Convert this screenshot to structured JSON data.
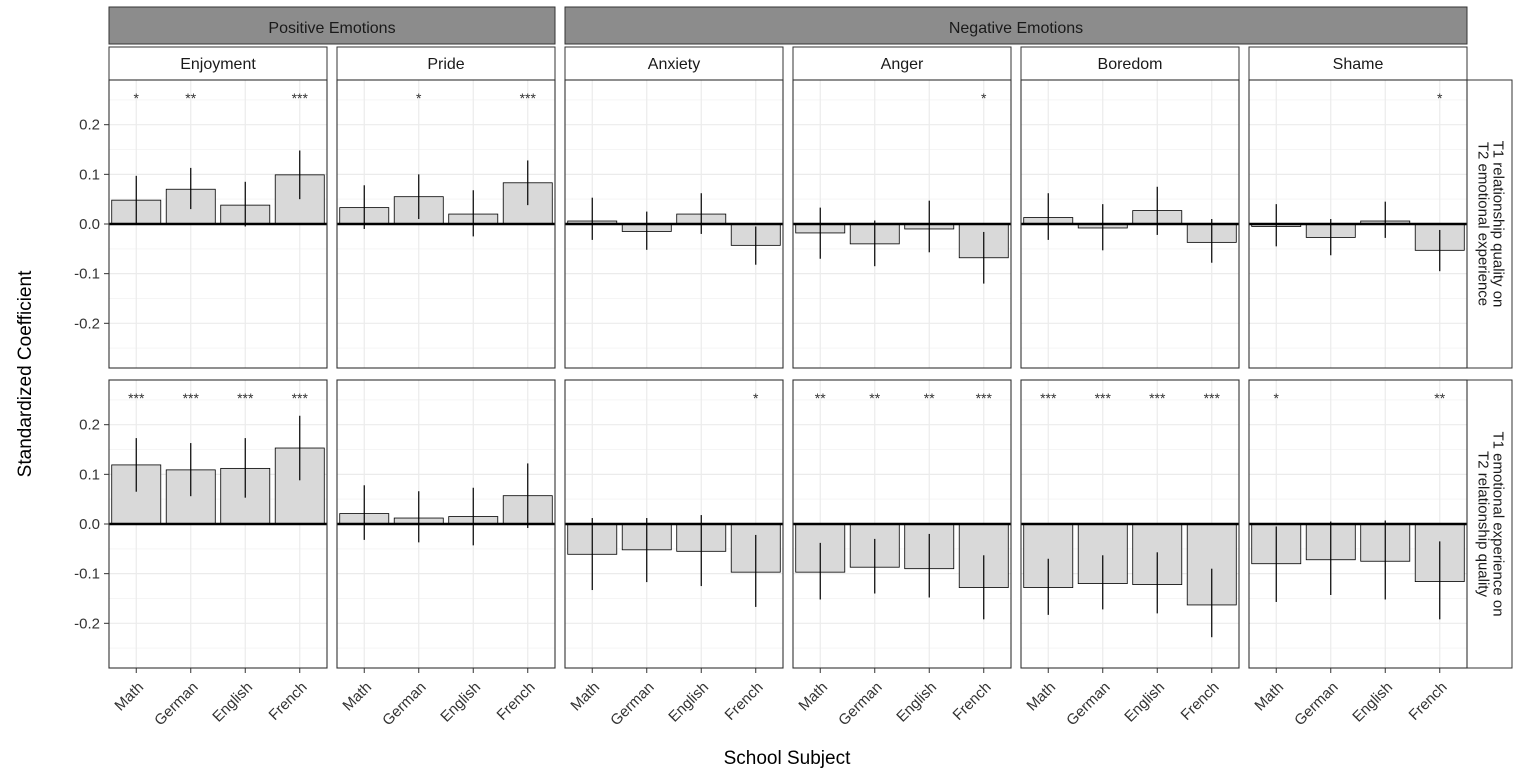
{
  "chart_data": {
    "type": "bar",
    "xlabel": "School Subject",
    "ylabel": "Standardized Coefficient",
    "categories": [
      "Math",
      "German",
      "English",
      "French"
    ],
    "ylim": [
      -0.29,
      0.29
    ],
    "yticks": [
      -0.2,
      -0.1,
      0.0,
      0.1,
      0.2
    ],
    "ytick_labels": [
      "-0.2",
      "-0.1",
      "0.0",
      "0.1",
      "0.2"
    ],
    "grid": true,
    "groups": [
      {
        "label": "Positive Emotions",
        "facets": [
          "Enjoyment",
          "Pride"
        ]
      },
      {
        "label": "Negative Emotions",
        "facets": [
          "Anxiety",
          "Anger",
          "Boredom",
          "Shame"
        ]
      }
    ],
    "facets": [
      "Enjoyment",
      "Pride",
      "Anxiety",
      "Anger",
      "Boredom",
      "Shame"
    ],
    "rows": [
      {
        "label": "T1 relationship quality on T2 emotional experience",
        "label_lines": [
          "T1 relationship quality on",
          "T2 emotional experience"
        ],
        "panels": [
          {
            "facet": "Enjoyment",
            "values": [
              0.048,
              0.07,
              0.038,
              0.099
            ],
            "ci_low": [
              0.0,
              0.03,
              -0.005,
              0.05
            ],
            "ci_high": [
              0.097,
              0.113,
              0.085,
              0.148
            ],
            "sig": [
              "*",
              "**",
              "",
              "***"
            ]
          },
          {
            "facet": "Pride",
            "values": [
              0.033,
              0.055,
              0.02,
              0.083
            ],
            "ci_low": [
              -0.01,
              0.01,
              -0.025,
              0.038
            ],
            "ci_high": [
              0.078,
              0.1,
              0.068,
              0.128
            ],
            "sig": [
              "",
              "*",
              "",
              "***"
            ]
          },
          {
            "facet": "Anxiety",
            "values": [
              0.006,
              -0.015,
              0.02,
              -0.043
            ],
            "ci_low": [
              -0.032,
              -0.052,
              -0.02,
              -0.082
            ],
            "ci_high": [
              0.053,
              0.025,
              0.062,
              -0.005
            ],
            "sig": [
              "",
              "",
              "",
              ""
            ]
          },
          {
            "facet": "Anger",
            "values": [
              -0.018,
              -0.04,
              -0.01,
              -0.068
            ],
            "ci_low": [
              -0.07,
              -0.085,
              -0.057,
              -0.12
            ],
            "ci_high": [
              0.033,
              0.007,
              0.047,
              -0.016
            ],
            "sig": [
              "",
              "",
              "",
              "*"
            ]
          },
          {
            "facet": "Boredom",
            "values": [
              0.013,
              -0.008,
              0.027,
              -0.037
            ],
            "ci_low": [
              -0.032,
              -0.053,
              -0.022,
              -0.078
            ],
            "ci_high": [
              0.062,
              0.04,
              0.075,
              0.01
            ],
            "sig": [
              "",
              "",
              "",
              ""
            ]
          },
          {
            "facet": "Shame",
            "values": [
              -0.005,
              -0.027,
              0.006,
              -0.053
            ],
            "ci_low": [
              -0.045,
              -0.063,
              -0.028,
              -0.095
            ],
            "ci_high": [
              0.04,
              0.01,
              0.045,
              -0.012
            ],
            "sig": [
              "",
              "",
              "",
              "*"
            ]
          }
        ]
      },
      {
        "label": "T1 emotional experience on T2 relationship quality",
        "label_lines": [
          "T1 emotional experience on",
          "T2 relationship quality"
        ],
        "panels": [
          {
            "facet": "Enjoyment",
            "values": [
              0.119,
              0.109,
              0.112,
              0.153
            ],
            "ci_low": [
              0.065,
              0.056,
              0.053,
              0.088
            ],
            "ci_high": [
              0.173,
              0.163,
              0.173,
              0.218
            ],
            "sig": [
              "***",
              "***",
              "***",
              "***"
            ]
          },
          {
            "facet": "Pride",
            "values": [
              0.021,
              0.012,
              0.015,
              0.057
            ],
            "ci_low": [
              -0.032,
              -0.037,
              -0.043,
              -0.008
            ],
            "ci_high": [
              0.078,
              0.066,
              0.073,
              0.122
            ],
            "sig": [
              "",
              "",
              "",
              ""
            ]
          },
          {
            "facet": "Anxiety",
            "values": [
              -0.061,
              -0.052,
              -0.055,
              -0.097
            ],
            "ci_low": [
              -0.133,
              -0.117,
              -0.125,
              -0.167
            ],
            "ci_high": [
              0.012,
              0.012,
              0.018,
              -0.022
            ],
            "sig": [
              "",
              "",
              "",
              "*"
            ]
          },
          {
            "facet": "Anger",
            "values": [
              -0.097,
              -0.087,
              -0.09,
              -0.128
            ],
            "ci_low": [
              -0.152,
              -0.14,
              -0.148,
              -0.192
            ],
            "ci_high": [
              -0.038,
              -0.03,
              -0.02,
              -0.063
            ],
            "sig": [
              "**",
              "**",
              "**",
              "***"
            ]
          },
          {
            "facet": "Boredom",
            "values": [
              -0.128,
              -0.12,
              -0.122,
              -0.163
            ],
            "ci_low": [
              -0.183,
              -0.172,
              -0.18,
              -0.228
            ],
            "ci_high": [
              -0.07,
              -0.063,
              -0.057,
              -0.09
            ],
            "sig": [
              "***",
              "***",
              "***",
              "***"
            ]
          },
          {
            "facet": "Shame",
            "values": [
              -0.08,
              -0.072,
              -0.075,
              -0.116
            ],
            "ci_low": [
              -0.157,
              -0.143,
              -0.152,
              -0.192
            ],
            "ci_high": [
              -0.005,
              0.005,
              0.007,
              -0.035
            ],
            "sig": [
              "*",
              "",
              "",
              "**"
            ]
          }
        ]
      }
    ]
  },
  "colors": {
    "bar_fill": "#d9d9d9",
    "bar_stroke": "#000000",
    "strip_group": "#8c8c8c",
    "strip_facet": "#ffffff",
    "grid_major": "#ebebeb",
    "grid_minor": "#f5f5f5",
    "panel_border": "#333333",
    "zero_line": "#000000",
    "error_bar": "#000000",
    "tick_label": "#4d4d4d"
  }
}
